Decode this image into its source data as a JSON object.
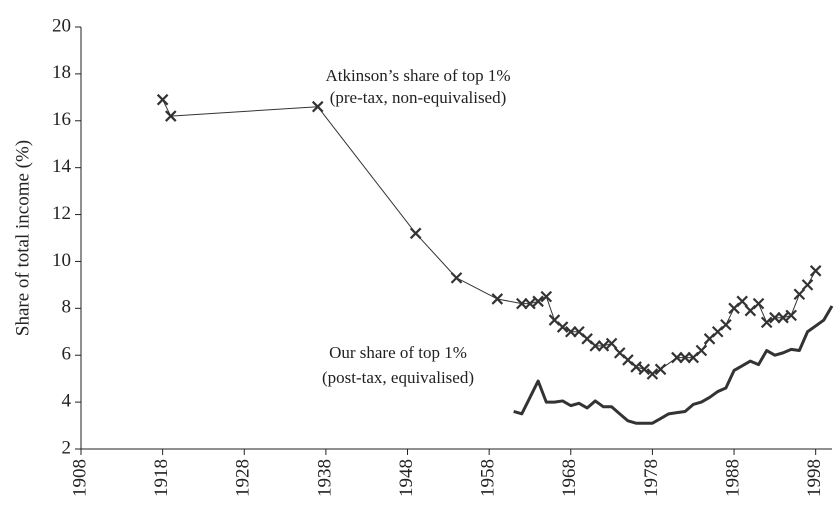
{
  "chart_data": {
    "type": "line",
    "y_label": "Share of total income (%)",
    "xlim": [
      1908,
      2000
    ],
    "xticks": [
      1908,
      1918,
      1928,
      1938,
      1948,
      1958,
      1968,
      1978,
      1988,
      1998
    ],
    "ylim": [
      2,
      20
    ],
    "yticks": [
      2,
      4,
      6,
      8,
      10,
      12,
      14,
      16,
      18,
      20
    ],
    "annotations": [
      [
        "Atkinson’s share of top 1%",
        "(pre-tax, non-equivalised)"
      ],
      [
        "Our share of top 1%",
        "(post-tax, equivalised)"
      ]
    ],
    "series": [
      {
        "color": "#333333",
        "marker": "x",
        "x": [
          1918,
          1919,
          1937,
          1949,
          1954,
          1959,
          1962,
          1963,
          1964,
          1965,
          1966,
          1967,
          1968,
          1969,
          1970,
          1971,
          1972,
          1973,
          1974,
          1975,
          1976,
          1977,
          1978,
          1979,
          1981,
          1982,
          1983,
          1984,
          1985,
          1986,
          1987,
          1988,
          1989,
          1990,
          1991,
          1992,
          1993,
          1994,
          1995,
          1996,
          1997,
          1998
        ],
        "values": [
          16.9,
          16.2,
          16.6,
          11.2,
          9.3,
          8.4,
          8.2,
          8.2,
          8.3,
          8.5,
          7.5,
          7.2,
          7.0,
          7.0,
          6.7,
          6.4,
          6.4,
          6.5,
          6.1,
          5.8,
          5.5,
          5.4,
          5.2,
          5.4,
          5.9,
          5.9,
          5.9,
          6.2,
          6.7,
          7.0,
          7.3,
          8.0,
          8.3,
          7.9,
          8.2,
          7.4,
          7.6,
          7.6,
          7.7,
          8.6,
          9.0,
          9.6
        ]
      },
      {
        "color": "#333333",
        "marker": "none",
        "x": [
          1961,
          1962,
          1963,
          1964,
          1965,
          1966,
          1967,
          1968,
          1969,
          1970,
          1971,
          1972,
          1973,
          1974,
          1975,
          1976,
          1977,
          1978,
          1979,
          1980,
          1981,
          1982,
          1983,
          1984,
          1985,
          1986,
          1987,
          1988,
          1989,
          1990,
          1991,
          1992,
          1993,
          1994,
          1995,
          1996,
          1997,
          1998,
          1999,
          2000
        ],
        "values": [
          3.6,
          3.5,
          4.2,
          4.9,
          4.0,
          4.0,
          4.05,
          3.85,
          3.95,
          3.75,
          4.05,
          3.8,
          3.8,
          3.5,
          3.2,
          3.1,
          3.1,
          3.1,
          3.3,
          3.5,
          3.55,
          3.6,
          3.9,
          4.0,
          4.2,
          4.45,
          4.6,
          5.35,
          5.55,
          5.75,
          5.6,
          6.2,
          6.0,
          6.1,
          6.25,
          6.2,
          7.0,
          7.25,
          7.5,
          8.1
        ]
      }
    ]
  }
}
